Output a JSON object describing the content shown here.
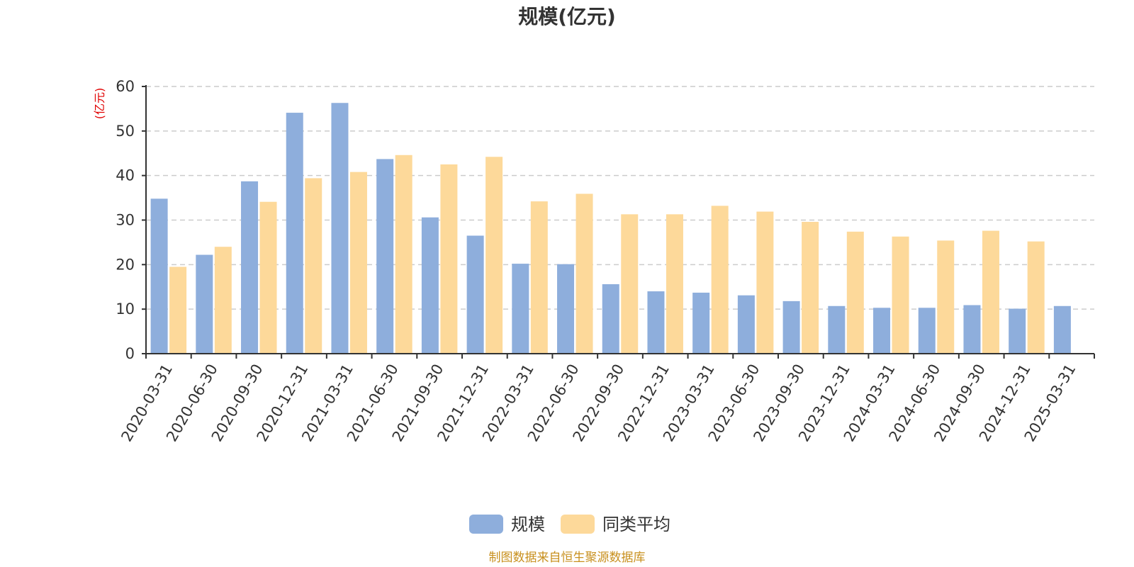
{
  "chart_data": {
    "type": "bar",
    "title": "规模(亿元)",
    "ylabel": "(亿元)",
    "xlabel": "",
    "ylim": [
      0,
      60
    ],
    "yticks": [
      0,
      10,
      20,
      30,
      40,
      50,
      60
    ],
    "grid": true,
    "legend_position": "bottom",
    "categories": [
      "2020-03-31",
      "2020-06-30",
      "2020-09-30",
      "2020-12-31",
      "2021-03-31",
      "2021-06-30",
      "2021-09-30",
      "2021-12-31",
      "2022-03-31",
      "2022-06-30",
      "2022-09-30",
      "2022-12-31",
      "2023-03-31",
      "2023-06-30",
      "2023-09-30",
      "2023-12-31",
      "2024-03-31",
      "2024-06-30",
      "2024-09-30",
      "2024-12-31",
      "2025-03-31"
    ],
    "series": [
      {
        "name": "规模",
        "color": "#8eaedc",
        "values": [
          34.8,
          22.2,
          38.7,
          54.1,
          56.3,
          43.7,
          30.6,
          26.5,
          20.2,
          20.1,
          15.6,
          14.0,
          13.7,
          13.1,
          11.8,
          10.7,
          10.3,
          10.3,
          10.9,
          10.1,
          10.7
        ]
      },
      {
        "name": "同类平均",
        "color": "#fdd99a",
        "values": [
          19.5,
          24.0,
          34.1,
          39.4,
          40.8,
          44.6,
          42.5,
          44.2,
          34.2,
          35.9,
          31.3,
          31.3,
          33.2,
          31.9,
          29.6,
          27.4,
          26.3,
          25.4,
          27.6,
          25.2,
          null
        ]
      }
    ]
  },
  "source_note": "制图数据来自恒生聚源数据库"
}
